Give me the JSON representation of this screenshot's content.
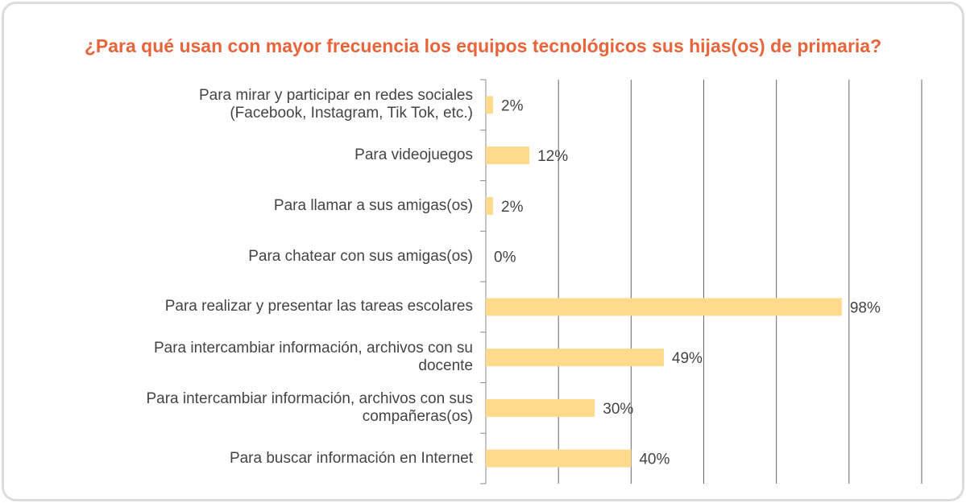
{
  "chart_data": {
    "type": "bar",
    "orientation": "horizontal",
    "title": "¿Para qué usan con mayor frecuencia los equipos tecnológicos sus hijas(os) de primaria?",
    "categories": [
      "Para mirar y participar en redes sociales\n(Facebook, Instagram, Tik Tok, etc.)",
      "Para videojuegos",
      "Para llamar a sus amigas(os)",
      "Para chatear con sus amigas(os)",
      "Para realizar y presentar las tareas escolares",
      "Para intercambiar información, archivos con su\ndocente",
      "Para intercambiar información, archivos con sus\ncompañeras(os)",
      "Para buscar información en Internet"
    ],
    "values": [
      2,
      12,
      2,
      0,
      98,
      49,
      30,
      40
    ],
    "value_labels": [
      "2%",
      "12%",
      "2%",
      "0%",
      "98%",
      "49%",
      "30%",
      "40%"
    ],
    "color": "#ffd98c",
    "xlim": [
      0,
      120
    ],
    "xticks": [
      0,
      20,
      40,
      60,
      80,
      100,
      120
    ],
    "grid": true
  }
}
